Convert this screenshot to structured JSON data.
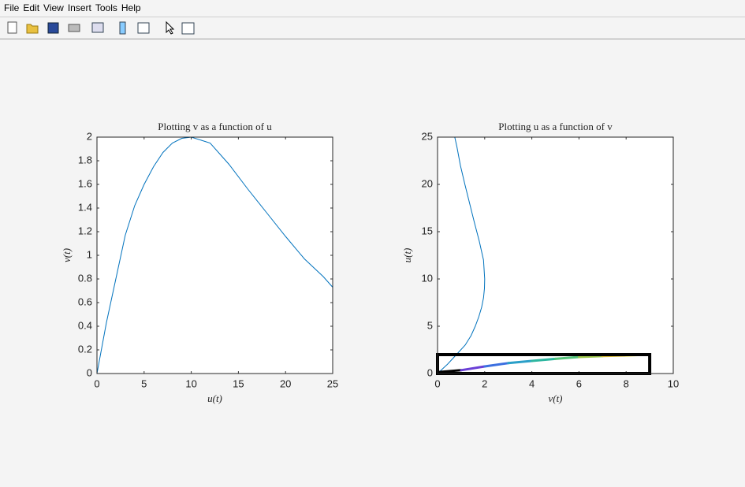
{
  "menu": [
    "File",
    "Edit",
    "View",
    "Insert",
    "Tools",
    "Help"
  ],
  "chart_data": [
    {
      "type": "line",
      "title": "Plotting v as a function of u",
      "xlabel": "u(t)",
      "ylabel": "v(t)",
      "xlim": [
        0,
        25
      ],
      "ylim": [
        0,
        2
      ],
      "xticks": [
        0,
        5,
        10,
        15,
        20,
        25
      ],
      "yticks": [
        0,
        0.2,
        0.4,
        0.6,
        0.8,
        1,
        1.2,
        1.4,
        1.6,
        1.8,
        2
      ],
      "series": [
        {
          "color": "#0072bd",
          "x": [
            0,
            1,
            2,
            3,
            4,
            5,
            6,
            7,
            8,
            9,
            10,
            12,
            14,
            16,
            18,
            20,
            22,
            24,
            25
          ],
          "values": [
            0,
            0.43,
            0.8,
            1.17,
            1.42,
            1.6,
            1.75,
            1.87,
            1.95,
            1.99,
            2.0,
            1.95,
            1.77,
            1.56,
            1.36,
            1.16,
            0.97,
            0.82,
            0.73
          ]
        }
      ]
    },
    {
      "type": "line",
      "title": "Plotting u as a function of v",
      "xlabel": "v(t)",
      "ylabel": "u(t)",
      "xlim": [
        0,
        10
      ],
      "ylim": [
        0,
        25
      ],
      "xticks": [
        0,
        2,
        4,
        6,
        8,
        10
      ],
      "yticks": [
        0,
        5,
        10,
        15,
        20,
        25
      ],
      "box": {
        "x": [
          0,
          9
        ],
        "y": [
          0,
          2
        ]
      },
      "series": [
        {
          "color": "#0072bd",
          "x": [
            0,
            0.43,
            0.8,
            1.17,
            1.42,
            1.6,
            1.75,
            1.87,
            1.95,
            1.99,
            2.0,
            1.95,
            1.77,
            1.56,
            1.36,
            1.16,
            0.97,
            0.82,
            0.73
          ],
          "values": [
            0,
            1,
            2,
            3,
            4,
            5,
            6,
            7,
            8,
            9,
            10,
            12,
            14,
            16,
            18,
            20,
            22,
            24,
            25
          ]
        },
        {
          "x": [
            0,
            1,
            2,
            3,
            4,
            5,
            6,
            7,
            8,
            9
          ],
          "values": [
            0.15,
            0.35,
            0.75,
            1.1,
            1.33,
            1.55,
            1.75,
            1.85,
            1.92,
            2.0
          ],
          "segment_colors": [
            "#000000",
            "#6a3fd6",
            "#3b6fe0",
            "#2a9fc8",
            "#2db6a0",
            "#54c37a",
            "#9cc64a",
            "#dcbf36",
            "#f5e51f"
          ]
        }
      ]
    }
  ]
}
